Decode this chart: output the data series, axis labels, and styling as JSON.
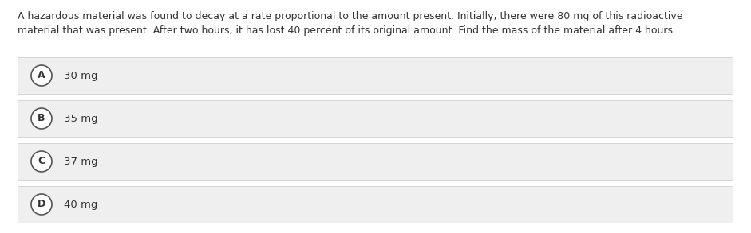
{
  "question_line1": "A hazardous material was found to decay at a rate proportional to the amount present. Initially, there were 80 mg of this radioactive",
  "question_line2": "material that was present. After two hours, it has lost 40 percent of its original amount. Find the mass of the material after 4 hours.",
  "options": [
    {
      "label": "A",
      "text": "30 mg"
    },
    {
      "label": "B",
      "text": "35 mg"
    },
    {
      "label": "C",
      "text": "37 mg"
    },
    {
      "label": "D",
      "text": "40 mg"
    }
  ],
  "bg_color": "#ffffff",
  "option_bg_color": "#efefef",
  "option_border_color": "#d0d0d0",
  "circle_edge_color": "#555555",
  "circle_fill_color": "#ffffff",
  "text_color": "#333333",
  "font_size_question": 9.0,
  "font_size_option": 9.5,
  "font_size_label": 9.0,
  "bottom_line_color": "#cccccc"
}
